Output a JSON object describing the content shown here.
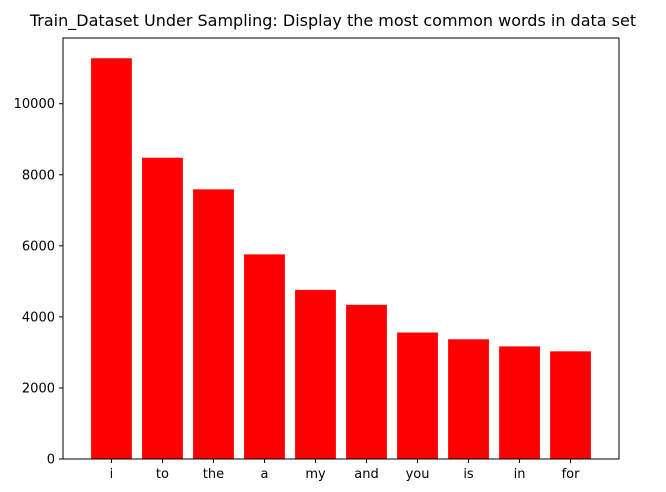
{
  "chart_data": {
    "type": "bar",
    "title": "Train_Dataset Under Sampling: Display the most common words in data set",
    "xlabel": "",
    "ylabel": "",
    "categories": [
      "i",
      "to",
      "the",
      "a",
      "my",
      "and",
      "you",
      "is",
      "in",
      "for"
    ],
    "values": [
      11280,
      8480,
      7590,
      5760,
      4760,
      4340,
      3560,
      3370,
      3170,
      3030
    ],
    "ylim": [
      0,
      11850
    ],
    "yticks": [
      0,
      2000,
      4000,
      6000,
      8000,
      10000
    ],
    "grid": false,
    "bar_color": "#ff0000"
  }
}
